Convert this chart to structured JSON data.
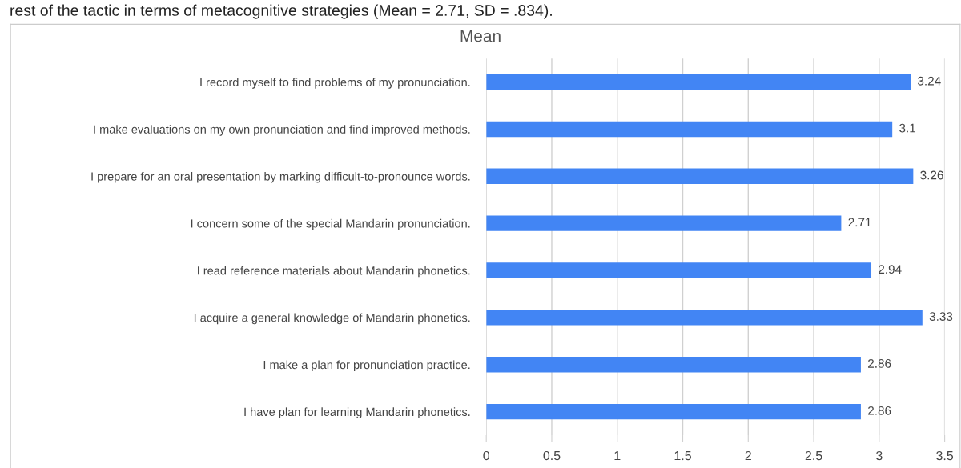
{
  "chart_data": {
    "type": "bar",
    "orientation": "horizontal",
    "title": "Mean",
    "annotations": [
      "rest of the tactic in terms of metacognitive strategies (Mean = 2.71, SD = .834)."
    ],
    "categories": [
      "I record myself to find problems of my pronunciation.",
      "I make evaluations on my own pronunciation and find improved methods.",
      "I prepare for an oral presentation by marking difficult-to-pronounce words.",
      "I concern some of the special Mandarin pronunciation.",
      "I read reference materials about Mandarin phonetics.",
      "I acquire a general knowledge of Mandarin phonetics.",
      "I make a plan for pronunciation practice.",
      "I have plan for learning Mandarin phonetics."
    ],
    "values": [
      3.24,
      3.1,
      3.26,
      2.71,
      2.94,
      3.33,
      2.86,
      2.86
    ],
    "color": "#4285f4",
    "data_labels": true,
    "grid": "x",
    "xlim": [
      0,
      3.5
    ],
    "xticks": [
      0,
      0.5,
      1,
      1.5,
      2,
      2.5,
      3,
      3.5
    ]
  }
}
